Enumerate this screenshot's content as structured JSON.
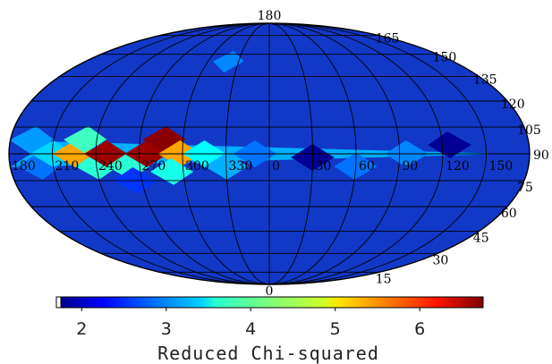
{
  "chart_data": {
    "type": "heatmap",
    "projection": "mollweide",
    "colormap": "jet",
    "lon_labels": [
      "180",
      "210",
      "240",
      "270",
      "300",
      "330",
      "0",
      "30",
      "60",
      "90",
      "120",
      "150"
    ],
    "lat_labels": [
      "180",
      "165",
      "150",
      "135",
      "120",
      "105",
      "90",
      "75",
      "60",
      "45",
      "30",
      "15",
      "0"
    ],
    "colorbar": {
      "ticks": [
        "2",
        "3",
        "4",
        "5",
        "6"
      ],
      "range": [
        1.7,
        6.75
      ],
      "label": "Reduced Chi-squared"
    },
    "cells": [
      {
        "lon": 180,
        "lat": 90,
        "value": 3.2
      },
      {
        "lon": 200,
        "lat": 97,
        "value": 2.9
      },
      {
        "lon": 210,
        "lat": 90,
        "value": 3.4
      },
      {
        "lon": 225,
        "lat": 90,
        "value": 5.3
      },
      {
        "lon": 240,
        "lat": 97,
        "value": 3.8
      },
      {
        "lon": 247,
        "lat": 90,
        "value": 6.6
      },
      {
        "lon": 232,
        "lat": 82,
        "value": 3.9
      },
      {
        "lon": 262,
        "lat": 97,
        "value": 3.8
      },
      {
        "lon": 275,
        "lat": 90,
        "value": 6.6
      },
      {
        "lon": 287,
        "lat": 82,
        "value": 6.7
      },
      {
        "lon": 298,
        "lat": 90,
        "value": 5.3
      },
      {
        "lon": 292,
        "lat": 100,
        "value": 3.7
      },
      {
        "lon": 315,
        "lat": 90,
        "value": 3.6
      },
      {
        "lon": 330,
        "lat": 97,
        "value": 3.2
      },
      {
        "lon": 350,
        "lat": 90,
        "value": 2.9
      },
      {
        "lon": 30,
        "lat": 92,
        "value": 1.8
      },
      {
        "lon": 125,
        "lat": 85,
        "value": 1.8
      },
      {
        "lon": 195,
        "lat": 82,
        "value": 3.1
      },
      {
        "lon": 265,
        "lat": 105,
        "value": 2.6
      },
      {
        "lon": 60,
        "lat": 97,
        "value": 2.9
      },
      {
        "lon": 95,
        "lat": 90,
        "value": 3.0
      },
      {
        "lon": 320,
        "lat": 35,
        "value": 3.0
      }
    ]
  }
}
